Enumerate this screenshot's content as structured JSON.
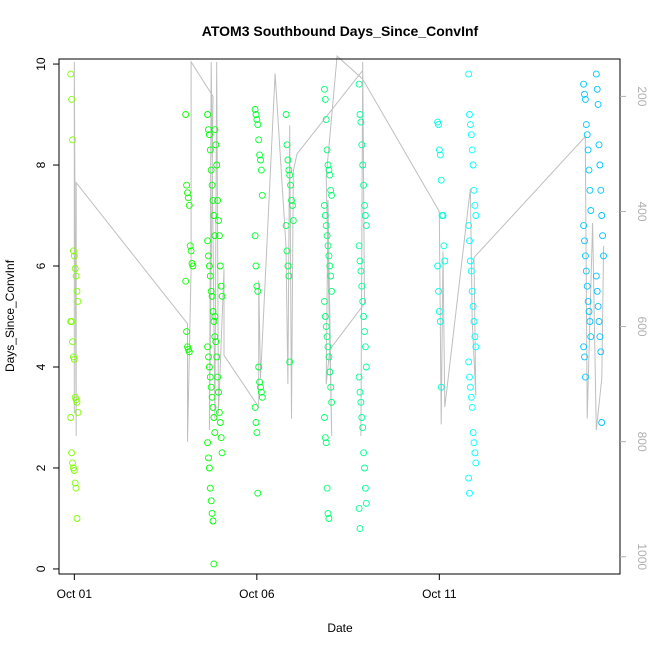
{
  "chart_data": {
    "type": "scatter",
    "title": "ATOM3 Southbound Days_Since_ConvInf",
    "xlabel": "Date",
    "ylabel": "Days_Since_ConvInf",
    "x_ticks": [
      {
        "label": "Oct 01",
        "day": 1
      },
      {
        "label": "Oct 06",
        "day": 6
      },
      {
        "label": "Oct 11",
        "day": 11
      }
    ],
    "xlim_days": [
      0.58,
      15.95
    ],
    "ylim": [
      -0.1,
      10.1
    ],
    "y_ticks": [
      0,
      2,
      4,
      6,
      8,
      10
    ],
    "y2_ticks": [
      200,
      400,
      600,
      800,
      1000
    ],
    "y2lim": [
      1030,
      135
    ],
    "grid": false,
    "colors": {
      "points_by_time": [
        "#7fff00",
        "#00ff00",
        "#00ff7f",
        "#00ffff",
        "#00bfff"
      ],
      "altitude_line": "#bfbfbf",
      "axis": "#000000",
      "right_axis": "#b0b0b0"
    },
    "clusters": [
      {
        "day": 1.0,
        "y": [
          9.8,
          9.3,
          8.5,
          6.3,
          6.2,
          5.95,
          5.8,
          5.5,
          5.3,
          4.9,
          4.9,
          4.5,
          4.2,
          4.15,
          3.4,
          3.35,
          3.3,
          3.1,
          3.0,
          2.3,
          2.1,
          2.0,
          1.95,
          1.7,
          1.6,
          1.0
        ]
      },
      {
        "day": 4.15,
        "y": [
          9.0,
          7.6,
          7.45,
          7.35,
          7.2,
          6.4,
          6.3,
          6.05,
          6.0,
          5.7,
          4.7,
          4.4,
          4.35,
          4.3
        ]
      },
      {
        "day": 4.75,
        "y": [
          9.0,
          8.7,
          8.6,
          8.3,
          7.9,
          7.6,
          7.3,
          7.0,
          6.6,
          6.5,
          6.2,
          6.0,
          5.8,
          5.5,
          5.4,
          5.1,
          4.9,
          4.6,
          4.4,
          4.2,
          4.0,
          3.8,
          3.6,
          3.4,
          3.2,
          3.0,
          2.7,
          2.5,
          2.2,
          2.0,
          1.6,
          1.35,
          1.1,
          0.95,
          0.1
        ]
      },
      {
        "day": 4.95,
        "y": [
          8.7,
          8.4,
          8.0,
          7.3,
          6.9,
          6.6,
          6.0,
          5.6,
          5.4,
          5.0,
          4.5,
          4.2,
          3.8,
          3.5,
          3.1,
          2.9,
          2.6,
          2.3
        ]
      },
      {
        "day": 6.05,
        "y": [
          9.1,
          9.0,
          8.9,
          8.8,
          8.5,
          8.2,
          8.1,
          7.9,
          7.4,
          6.6,
          6.0,
          5.6,
          5.5,
          4.0,
          3.7,
          3.6,
          3.5,
          3.4,
          3.2,
          2.9,
          2.7,
          1.5
        ]
      },
      {
        "day": 6.9,
        "y": [
          9.0,
          8.4,
          8.1,
          7.9,
          7.8,
          7.6,
          7.3,
          7.2,
          6.9,
          6.8,
          6.3,
          6.0,
          5.8,
          4.1
        ]
      },
      {
        "day": 7.95,
        "y": [
          9.5,
          9.3,
          8.9,
          8.3,
          8.0,
          7.9,
          7.8,
          7.5,
          7.4,
          7.2,
          7.0,
          6.8,
          6.6,
          6.4,
          6.2,
          6.0,
          5.8,
          5.5,
          5.3,
          5.0,
          4.8,
          4.6,
          4.4,
          4.2,
          3.9,
          3.6,
          3.3,
          3.0,
          2.6,
          2.5,
          1.6,
          1.1,
          1.0
        ]
      },
      {
        "day": 8.9,
        "y": [
          9.6,
          9.0,
          8.85,
          8.4,
          8.0,
          7.6,
          7.2,
          7.0,
          6.8,
          6.4,
          6.1,
          5.9,
          5.6,
          5.3,
          5.0,
          4.7,
          4.4,
          4.0,
          3.8,
          3.5,
          3.3,
          3.0,
          2.8,
          2.3,
          2.0,
          1.6,
          1.3,
          1.2,
          0.8
        ]
      },
      {
        "day": 11.05,
        "y": [
          8.85,
          8.8,
          8.3,
          8.2,
          7.7,
          7.0,
          7.0,
          6.4,
          6.1,
          6.0,
          5.5,
          5.1,
          4.9,
          3.6
        ]
      },
      {
        "day": 11.9,
        "y": [
          9.8,
          9.0,
          8.8,
          8.6,
          8.3,
          8.0,
          7.5,
          7.2,
          7.0,
          6.8,
          6.5,
          6.1,
          5.9,
          5.5,
          5.2,
          4.9,
          4.6,
          4.4,
          4.1,
          3.8,
          3.6,
          3.4,
          3.2,
          2.7,
          2.5,
          2.3,
          2.1,
          1.8,
          1.5
        ]
      },
      {
        "day": 15.05,
        "y": [
          9.6,
          9.4,
          9.3,
          8.8,
          8.6,
          8.3,
          7.9,
          7.5,
          7.1,
          6.8,
          6.5,
          6.2,
          5.9,
          5.6,
          5.3,
          5.1,
          4.9,
          4.6,
          4.4,
          4.2,
          3.8
        ]
      },
      {
        "day": 15.4,
        "y": [
          9.8,
          9.5,
          9.2,
          8.4,
          8.0,
          7.5,
          7.0,
          6.6,
          6.2,
          5.8,
          5.5,
          5.2,
          4.9,
          4.6,
          4.3,
          2.9
        ]
      }
    ],
    "altitude_path": [
      [
        1.0,
        750
      ],
      [
        1.0,
        140
      ],
      [
        1.05,
        790
      ],
      [
        1.05,
        350
      ],
      [
        4.1,
        595
      ],
      [
        4.1,
        800
      ],
      [
        4.2,
        500
      ],
      [
        4.2,
        140
      ],
      [
        4.8,
        200
      ],
      [
        4.7,
        780
      ],
      [
        4.75,
        140
      ],
      [
        4.85,
        760
      ],
      [
        4.9,
        140
      ],
      [
        4.95,
        750
      ],
      [
        5.1,
        500
      ],
      [
        5.1,
        650
      ],
      [
        6.05,
        740
      ],
      [
        6.05,
        520
      ],
      [
        6.1,
        690
      ],
      [
        6.5,
        160
      ],
      [
        6.8,
        460
      ],
      [
        6.85,
        700
      ],
      [
        6.9,
        250
      ],
      [
        6.95,
        760
      ],
      [
        7.0,
        330
      ],
      [
        7.1,
        300
      ],
      [
        8.9,
        155
      ],
      [
        8.85,
        790
      ],
      [
        8.9,
        140
      ],
      [
        8.95,
        560
      ],
      [
        8.0,
        640
      ],
      [
        7.9,
        700
      ],
      [
        7.95,
        380
      ],
      [
        8.05,
        790
      ],
      [
        7.9,
        340
      ],
      [
        8.2,
        130
      ],
      [
        8.9,
        170
      ],
      [
        11.0,
        400
      ],
      [
        11.05,
        770
      ],
      [
        11.1,
        470
      ],
      [
        11.15,
        740
      ],
      [
        11.85,
        360
      ],
      [
        11.9,
        590
      ],
      [
        12.0,
        720
      ],
      [
        11.95,
        480
      ],
      [
        15.0,
        270
      ],
      [
        15.05,
        760
      ],
      [
        15.2,
        420
      ],
      [
        15.3,
        780
      ],
      [
        15.45,
        690
      ],
      [
        15.5,
        460
      ]
    ]
  }
}
